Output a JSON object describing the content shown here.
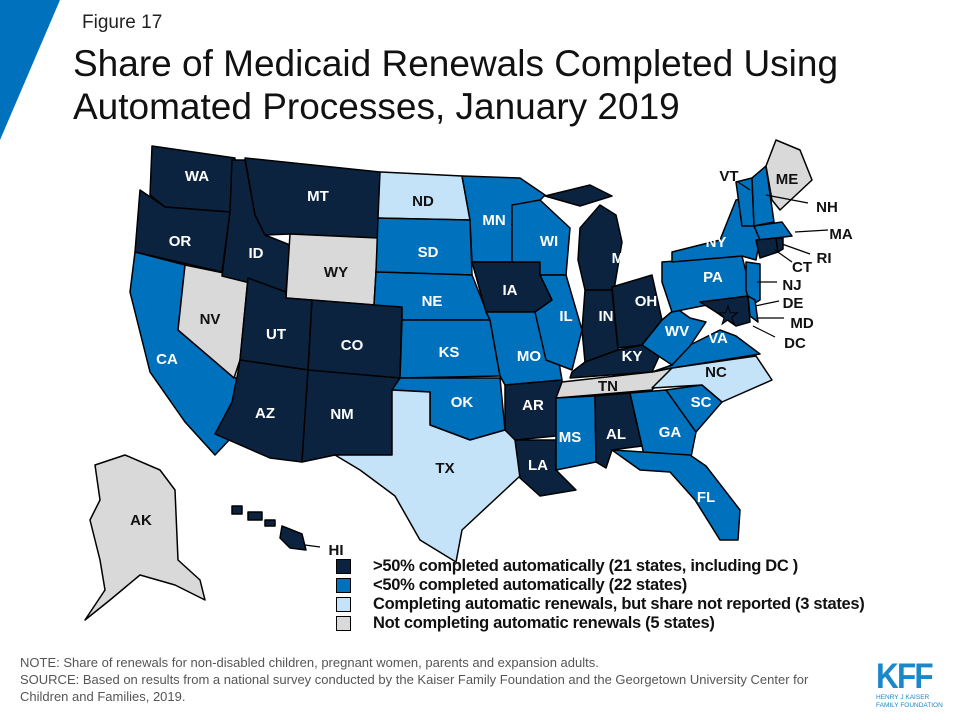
{
  "figure_label": "Figure 17",
  "title": "Share of Medicaid Renewals Completed Using Automated Processes, January 2019",
  "colors": {
    "over50": "#0c2340",
    "under50": "#0071bc",
    "not_reported": "#c5e3f8",
    "none": "#d9d9d9",
    "accent": "#0071bc"
  },
  "legend": [
    {
      "key": "over50",
      "label": ">50% completed automatically (21 states, including DC )"
    },
    {
      "key": "under50",
      "label": "<50% completed automatically (22 states)"
    },
    {
      "key": "not_reported",
      "label": "Completing automatic renewals, but share not reported (3 states)"
    },
    {
      "key": "none",
      "label": "Not completing automatic renewals (5 states)"
    }
  ],
  "states": {
    "WA": "over50",
    "OR": "over50",
    "ID": "over50",
    "MT": "over50",
    "UT": "over50",
    "CO": "over50",
    "AZ": "over50",
    "NM": "over50",
    "IA": "over50",
    "AR": "over50",
    "LA": "over50",
    "AL": "over50",
    "MI": "over50",
    "IN": "over50",
    "OH": "over50",
    "KY": "over50",
    "CT": "over50",
    "RI": "over50",
    "MD": "over50",
    "DC": "over50",
    "HI": "over50",
    "CA": "under50",
    "SD": "under50",
    "NE": "under50",
    "KS": "under50",
    "OK": "under50",
    "MN": "under50",
    "WI": "under50",
    "IL": "under50",
    "MO": "under50",
    "MS": "under50",
    "GA": "under50",
    "SC": "under50",
    "FL": "under50",
    "VA": "under50",
    "WV": "under50",
    "PA": "under50",
    "NY": "under50",
    "NJ": "under50",
    "DE": "under50",
    "VT": "under50",
    "NH": "under50",
    "MA": "under50",
    "ND": "not_reported",
    "TX": "not_reported",
    "NC": "not_reported",
    "NV": "none",
    "WY": "none",
    "TN": "none",
    "ME": "none",
    "AK": "none"
  },
  "footer": {
    "note": "NOTE: Share of renewals for non-disabled children, pregnant women, parents and expansion adults.",
    "source": "SOURCE: Based on results from a national survey conducted by the Kaiser Family Foundation and the Georgetown University Center for Children and Families, 2019."
  },
  "logo": {
    "mark": "KFF",
    "line1": "HENRY J KAISER",
    "line2": "FAMILY FOUNDATION"
  }
}
